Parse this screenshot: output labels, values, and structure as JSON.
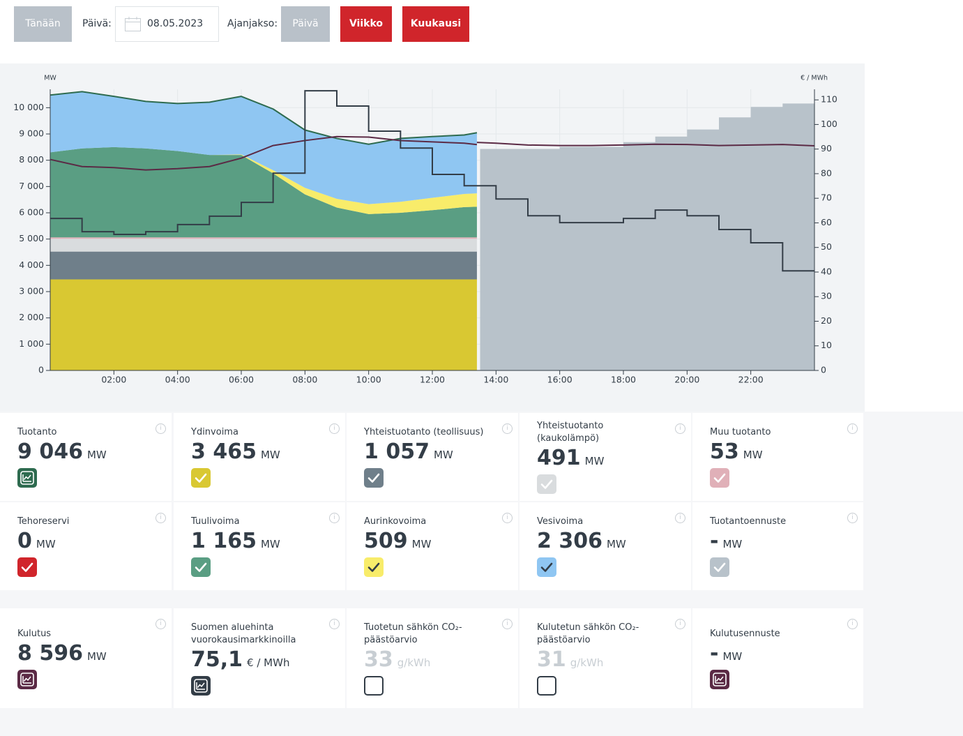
{
  "toolbar": {
    "today": "Tänään",
    "date_label": "Päivä:",
    "date": "08.05.2023",
    "period_label": "Ajanjakso:",
    "periods": [
      "Päivä",
      "Viikko",
      "Kuukausi"
    ]
  },
  "chart_data": {
    "type": "area",
    "y_label": "MW",
    "y2_label": "€ / MWh",
    "xlim": [
      0,
      24
    ],
    "ylim": [
      0,
      10700
    ],
    "y2lim": [
      0,
      114.3
    ],
    "xticks": [
      {
        "value": 2,
        "label": "02:00"
      },
      {
        "value": 4,
        "label": "04:00"
      },
      {
        "value": 6,
        "label": "06:00"
      },
      {
        "value": 8,
        "label": "08:00"
      },
      {
        "value": 10,
        "label": "10:00"
      },
      {
        "value": 12,
        "label": "12:00"
      },
      {
        "value": 14,
        "label": "14:00"
      },
      {
        "value": 16,
        "label": "16:00"
      },
      {
        "value": 18,
        "label": "18:00"
      },
      {
        "value": 20,
        "label": "20:00"
      },
      {
        "value": 22,
        "label": "22:00"
      }
    ],
    "yticks": [
      0,
      {
        "value": 1000,
        "label": "1 000"
      },
      {
        "value": 2000,
        "label": "2 000"
      },
      {
        "value": 3000,
        "label": "3 000"
      },
      {
        "value": 4000,
        "label": "4 000"
      },
      {
        "value": 5000,
        "label": "5 000"
      },
      {
        "value": 6000,
        "label": "6 000"
      },
      {
        "value": 7000,
        "label": "7 000"
      },
      {
        "value": 8000,
        "label": "8 000"
      },
      {
        "value": 9000,
        "label": "9 000"
      },
      {
        "value": 10000,
        "label": "10 000"
      }
    ],
    "y2ticks": [
      0,
      10,
      20,
      30,
      40,
      50,
      60,
      70,
      80,
      90,
      100,
      110
    ],
    "grid": true,
    "x": [
      0,
      1,
      2,
      3,
      4,
      5,
      6,
      7,
      8,
      9,
      10,
      11,
      12,
      13,
      13.4
    ],
    "series": [
      {
        "type": "area",
        "color": "#d9c832",
        "values": [
          3465,
          3465,
          3465,
          3465,
          3465,
          3465,
          3465,
          3465,
          3465,
          3465,
          3465,
          3465,
          3465,
          3465,
          3465
        ]
      },
      {
        "type": "area",
        "color": "#6f7f8a",
        "values": [
          1057,
          1057,
          1057,
          1057,
          1057,
          1057,
          1057,
          1057,
          1057,
          1057,
          1057,
          1057,
          1057,
          1057,
          1057
        ]
      },
      {
        "type": "area",
        "color": "#d9dcde",
        "values": [
          491,
          491,
          491,
          491,
          491,
          491,
          491,
          491,
          491,
          491,
          491,
          491,
          491,
          491,
          491
        ]
      },
      {
        "type": "area",
        "color": "#e0b0b8",
        "values": [
          53,
          53,
          53,
          53,
          53,
          53,
          53,
          53,
          53,
          53,
          53,
          53,
          53,
          53,
          53
        ]
      },
      {
        "type": "area",
        "color": "#5a9e83",
        "values": [
          3234,
          3384,
          3434,
          3384,
          3284,
          3134,
          3134,
          2434,
          1634,
          1134,
          884,
          934,
          1034,
          1150,
          1165
        ]
      },
      {
        "type": "area",
        "color": "#f8ec6a",
        "values": [
          0,
          0,
          0,
          0,
          0,
          0,
          20,
          120,
          250,
          330,
          380,
          420,
          470,
          500,
          509
        ]
      },
      {
        "type": "area",
        "color": "#8fc6f2",
        "values": [
          2180,
          2160,
          1930,
          1790,
          1810,
          2010,
          2210,
          2330,
          2200,
          2300,
          2280,
          2410,
          2330,
          2244,
          2306
        ]
      },
      {
        "type": "step-area",
        "color": "#b8c2ca",
        "x": [
          13.5,
          14,
          15,
          16,
          17,
          18,
          19,
          20,
          21,
          22,
          23
        ],
        "values": [
          8430,
          8430,
          8430,
          8510,
          8510,
          8690,
          8900,
          9170,
          9630,
          10030,
          10160
        ]
      },
      {
        "type": "line",
        "color": "#2e6b4f",
        "values": [
          10480,
          10610,
          10430,
          10240,
          10160,
          10210,
          10430,
          9950,
          9150,
          8830,
          8610,
          8830,
          8900,
          8960,
          9046
        ]
      },
      {
        "type": "line",
        "color": "#5b2a45",
        "values": [
          8030,
          7760,
          7720,
          7630,
          7680,
          7760,
          8080,
          8560,
          8750,
          8900,
          8880,
          8750,
          8700,
          8650,
          8596
        ]
      },
      {
        "type": "line",
        "color": "#5b2a45",
        "x": [
          13.4,
          14,
          15,
          16,
          17,
          18,
          19,
          20,
          21,
          22,
          23,
          24
        ],
        "values": [
          8680,
          8650,
          8580,
          8560,
          8560,
          8580,
          8610,
          8600,
          8560,
          8580,
          8600,
          8550
        ]
      },
      {
        "type": "step",
        "axis": "y2",
        "color": "#333d47",
        "x": [
          0,
          1,
          2,
          3,
          4,
          5,
          6,
          7,
          8,
          9,
          10,
          11,
          12,
          13,
          14,
          15,
          16,
          17,
          18,
          19,
          20,
          21,
          22,
          23
        ],
        "values": [
          61.8,
          56.4,
          55.3,
          56.4,
          59.3,
          62.7,
          68.3,
          80.2,
          113.7,
          107.5,
          97.3,
          90.4,
          79.7,
          75.1,
          69.7,
          62.9,
          60.1,
          60.1,
          61.8,
          65.2,
          62.9,
          57.3,
          51.9,
          40.5
        ]
      }
    ]
  },
  "cards": [
    [
      {
        "title": "Tuotanto",
        "value": "9 046",
        "unit": "MW",
        "icon": "chart",
        "color": "#2e6b4f",
        "icon_color": "#ffffff"
      },
      {
        "title": "Ydinvoima",
        "value": "3 465",
        "unit": "MW",
        "icon": "check",
        "color": "#d9c832",
        "icon_color": "#ffffff"
      },
      {
        "title": "Yhteistuotanto (teollisuus)",
        "value": "1 057",
        "unit": "MW",
        "icon": "check",
        "color": "#6f7f8a",
        "icon_color": "#ffffff"
      },
      {
        "title": "Yhteistuotanto (kaukolämpö)",
        "value": "491",
        "unit": "MW",
        "icon": "check",
        "color": "#d9dcde",
        "icon_color": "#ffffff"
      },
      {
        "title": "Muu tuotanto",
        "value": "53",
        "unit": "MW",
        "icon": "check",
        "color": "#e0b0b8",
        "icon_color": "#ffffff"
      }
    ],
    [
      {
        "title": "Tehoreservi",
        "value": "0",
        "unit": "MW",
        "icon": "check",
        "color": "#d0252b",
        "icon_color": "#ffffff"
      },
      {
        "title": "Tuulivoima",
        "value": "1 165",
        "unit": "MW",
        "icon": "check",
        "color": "#5a9e83",
        "icon_color": "#ffffff"
      },
      {
        "title": "Aurinkovoima",
        "value": "509",
        "unit": "MW",
        "icon": "check",
        "color": "#f8ec6a",
        "icon_color": "#333d47"
      },
      {
        "title": "Vesivoima",
        "value": "2 306",
        "unit": "MW",
        "icon": "check",
        "color": "#8fc6f2",
        "icon_color": "#333d47"
      },
      {
        "title": "Tuotantoennuste",
        "value": "-",
        "unit": "MW",
        "icon": "check",
        "color": "#b8c2ca",
        "icon_color": "#ffffff"
      }
    ],
    [
      {
        "title": "Kulutus",
        "value": "8 596",
        "unit": "MW",
        "icon": "chart",
        "color": "#5b2a45",
        "icon_color": "#ffffff"
      },
      {
        "title": "Suomen aluehinta vuorokausimarkkinoilla",
        "value": "75,1",
        "unit": "€ / MWh",
        "icon": "chart",
        "color": "#333d47",
        "icon_color": "#ffffff"
      },
      {
        "title": "Tuotetun sähkön CO₂-päästöarvio",
        "value": "33",
        "unit": "g/kWh",
        "icon": "empty",
        "color": "#333d47",
        "icon_color": "#ffffff",
        "muted": true
      },
      {
        "title": "Kulutetun sähkön CO₂-päästöarvio",
        "value": "31",
        "unit": "g/kWh",
        "icon": "empty",
        "color": "#333d47",
        "icon_color": "#ffffff",
        "muted": true
      },
      {
        "title": "Kulutusennuste",
        "value": "-",
        "unit": "MW",
        "icon": "chart",
        "color": "#5b2a45",
        "icon_color": "#ffffff"
      }
    ]
  ]
}
